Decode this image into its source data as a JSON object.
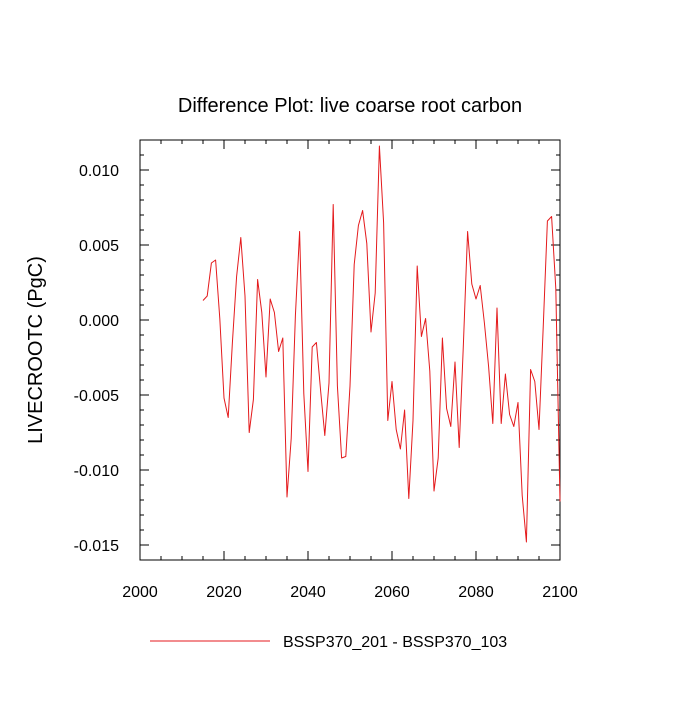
{
  "chart_data": {
    "type": "line",
    "title": "Difference Plot: live coarse root carbon",
    "xlabel": "",
    "ylabel": "LIVECROOTC  (PgC)",
    "xlim": [
      2000,
      2100
    ],
    "ylim": [
      -0.016,
      0.012
    ],
    "xticks": [
      2000,
      2020,
      2040,
      2060,
      2080,
      2100
    ],
    "xtick_labels": [
      "2000",
      "2020",
      "2040",
      "2060",
      "2080",
      "2100"
    ],
    "yticks": [
      -0.015,
      -0.01,
      -0.005,
      0.0,
      0.005,
      0.01
    ],
    "ytick_labels": [
      "-0.015",
      "-0.010",
      "-0.005",
      "0.000",
      "0.005",
      "0.010"
    ],
    "grid": false,
    "legend_position": "bottom",
    "series": [
      {
        "name": "BSSP370_201 - BSSP370_103",
        "color": "#e41a1c",
        "x": [
          2015,
          2016,
          2017,
          2018,
          2019,
          2020,
          2021,
          2022,
          2023,
          2024,
          2025,
          2026,
          2027,
          2028,
          2029,
          2030,
          2031,
          2032,
          2033,
          2034,
          2035,
          2036,
          2037,
          2038,
          2039,
          2040,
          2041,
          2042,
          2043,
          2044,
          2045,
          2046,
          2047,
          2048,
          2049,
          2050,
          2051,
          2052,
          2053,
          2054,
          2055,
          2056,
          2057,
          2058,
          2059,
          2060,
          2061,
          2062,
          2063,
          2064,
          2065,
          2066,
          2067,
          2068,
          2069,
          2070,
          2071,
          2072,
          2073,
          2074,
          2075,
          2076,
          2077,
          2078,
          2079,
          2080,
          2081,
          2082,
          2083,
          2084,
          2085,
          2086,
          2087,
          2088,
          2089,
          2090,
          2091,
          2092,
          2093,
          2094,
          2095,
          2096,
          2097,
          2098,
          2099,
          2100
        ],
        "values": [
          0.0013,
          0.0016,
          0.0038,
          0.004,
          0.0001,
          -0.0052,
          -0.0065,
          -0.0015,
          0.0029,
          0.0055,
          0.0016,
          -0.0075,
          -0.0053,
          0.0027,
          0.0005,
          -0.0038,
          0.0014,
          0.0005,
          -0.0021,
          -0.0012,
          -0.0118,
          -0.0079,
          0.0003,
          0.0059,
          -0.0049,
          -0.0101,
          -0.0018,
          -0.0015,
          -0.0047,
          -0.0077,
          -0.0042,
          0.0077,
          -0.0044,
          -0.0092,
          -0.0091,
          -0.0044,
          0.0037,
          0.0063,
          0.0073,
          0.0051,
          -0.0008,
          0.0018,
          0.0116,
          0.0065,
          -0.0067,
          -0.0041,
          -0.0073,
          -0.0086,
          -0.006,
          -0.0119,
          -0.0067,
          0.0036,
          -0.0011,
          0.0001,
          -0.0034,
          -0.0114,
          -0.0092,
          -0.0012,
          -0.0059,
          -0.0071,
          -0.0028,
          -0.0085,
          -0.0016,
          0.0059,
          0.0024,
          0.0014,
          0.0023,
          -0.0002,
          -0.0031,
          -0.0069,
          0.0008,
          -0.0069,
          -0.0036,
          -0.0063,
          -0.0071,
          -0.0055,
          -0.0117,
          -0.0148,
          -0.0033,
          -0.0041,
          -0.0073,
          -0.0005,
          0.0066,
          0.0069,
          0.0021,
          -0.0121
        ]
      }
    ]
  }
}
